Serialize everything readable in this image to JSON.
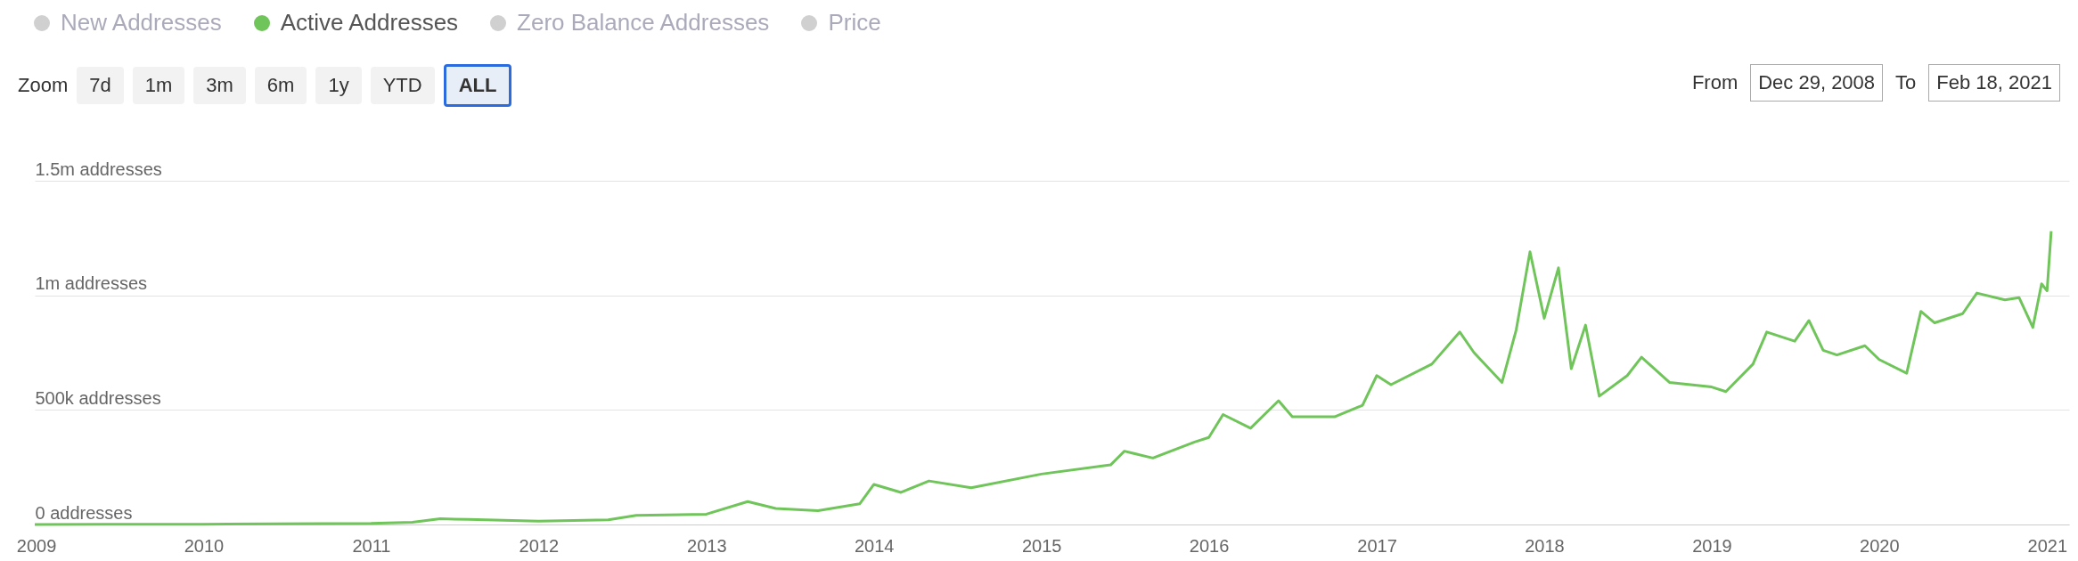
{
  "chart_data": {
    "type": "line",
    "x": [
      "2008-12-29",
      "2009-06",
      "2010-01",
      "2010-06",
      "2011-01",
      "2011-04",
      "2011-06",
      "2011-08",
      "2012-01",
      "2012-06",
      "2012-08",
      "2013-01",
      "2013-04",
      "2013-06",
      "2013-09",
      "2013-12",
      "2014-01",
      "2014-03",
      "2014-05",
      "2014-08",
      "2015-01",
      "2015-06",
      "2015-07",
      "2015-09",
      "2015-12",
      "2016-01",
      "2016-02",
      "2016-04",
      "2016-06",
      "2016-07",
      "2016-10",
      "2016-12",
      "2017-01",
      "2017-02",
      "2017-05",
      "2017-07",
      "2017-08",
      "2017-10",
      "2017-11",
      "2017-12",
      "2018-01",
      "2018-02",
      "2018-03",
      "2018-04",
      "2018-05",
      "2018-07",
      "2018-08",
      "2018-10",
      "2019-01",
      "2019-02",
      "2019-04",
      "2019-05",
      "2019-07",
      "2019-08",
      "2019-09",
      "2019-10",
      "2019-12",
      "2020-01",
      "2020-03",
      "2020-04",
      "2020-05",
      "2020-07",
      "2020-08",
      "2020-10",
      "2020-11",
      "2020-12",
      "2020-12-20",
      "2021-01",
      "2021-01-10"
    ],
    "series": [
      {
        "name": "Active Addresses",
        "color": "#70c55a",
        "values": [
          0,
          500,
          1000,
          3000,
          5000,
          10000,
          25000,
          22000,
          15000,
          20000,
          40000,
          45000,
          100000,
          70000,
          60000,
          90000,
          175000,
          140000,
          190000,
          160000,
          220000,
          260000,
          320000,
          290000,
          360000,
          380000,
          480000,
          420000,
          540000,
          470000,
          470000,
          520000,
          650000,
          610000,
          700000,
          840000,
          750000,
          620000,
          850000,
          1190000,
          900000,
          1120000,
          680000,
          870000,
          560000,
          650000,
          730000,
          620000,
          600000,
          580000,
          700000,
          840000,
          800000,
          890000,
          760000,
          740000,
          780000,
          720000,
          660000,
          930000,
          880000,
          920000,
          1010000,
          980000,
          990000,
          860000,
          1050000,
          1020000,
          1280000
        ]
      }
    ],
    "xlim": [
      "2008-12-29",
      "2021-02-18"
    ],
    "xticks": [
      "2009",
      "2010",
      "2011",
      "2012",
      "2013",
      "2014",
      "2015",
      "2016",
      "2017",
      "2018",
      "2019",
      "2020",
      "2021"
    ],
    "ylim": [
      0,
      1500000
    ],
    "yticks": [
      {
        "value": 0,
        "label": "0 addresses"
      },
      {
        "value": 500000,
        "label": "500k addresses"
      },
      {
        "value": 1000000,
        "label": "1m addresses"
      },
      {
        "value": 1500000,
        "label": "1.5m addresses"
      }
    ],
    "grid": "y",
    "legend": "top left",
    "annotations": [
      "New Addresses",
      "Zero Balance Addresses",
      "Price",
      "Zoom",
      "7d",
      "1m",
      "3m",
      "6m",
      "1y",
      "YTD",
      "ALL",
      "From",
      "Dec 29, 2008",
      "To",
      "Feb 18, 2021"
    ]
  }
}
